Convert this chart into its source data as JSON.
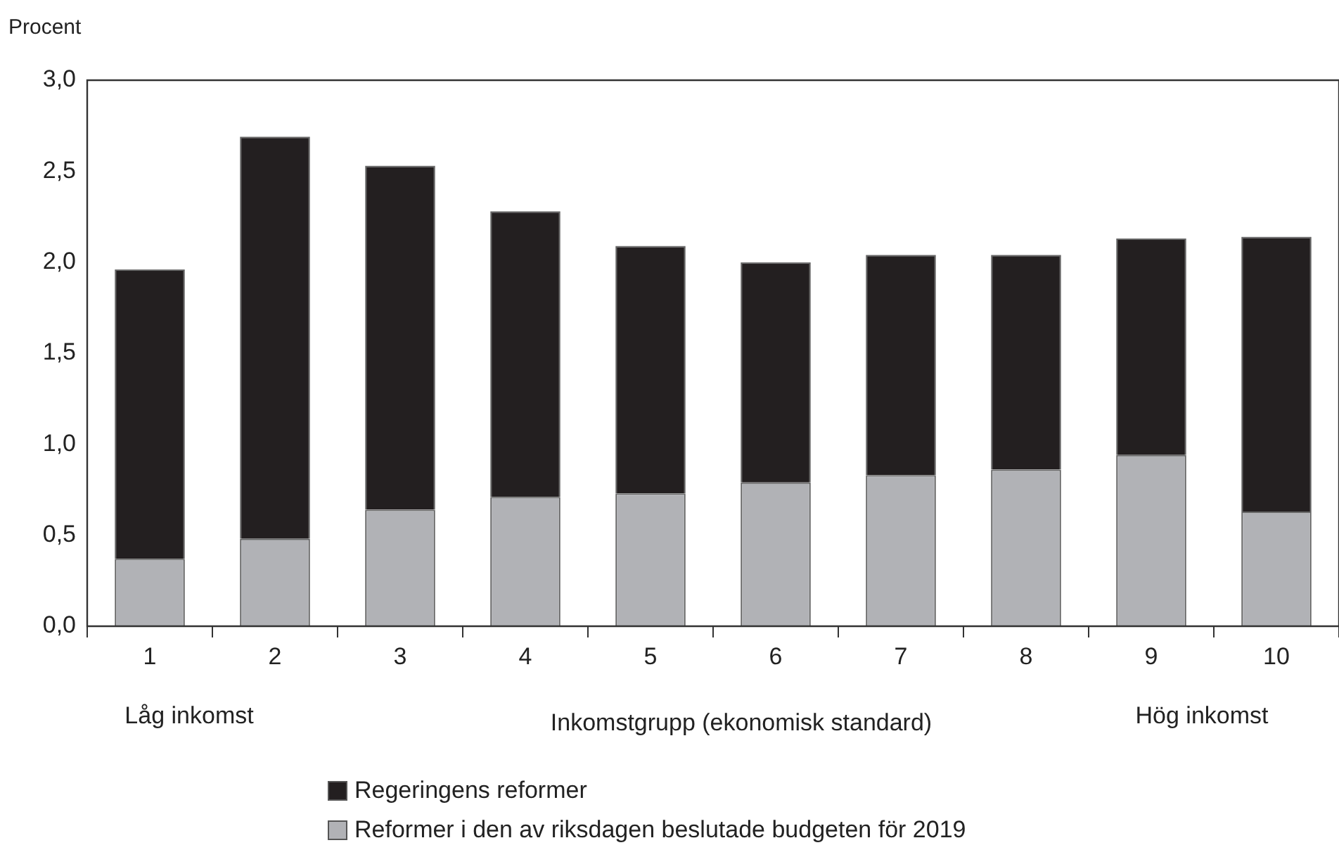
{
  "chart_data": {
    "type": "bar",
    "stacked": true,
    "ylabel": "Procent",
    "xlabel": "Inkomstgrupp (ekonomisk standard)",
    "categories": [
      "1",
      "2",
      "3",
      "4",
      "5",
      "6",
      "7",
      "8",
      "9",
      "10"
    ],
    "series": [
      {
        "name": "Reformer i den av riksdagen beslutade budgeten för 2019",
        "color": "#b1b2b6",
        "values": [
          0.37,
          0.48,
          0.64,
          0.71,
          0.73,
          0.79,
          0.83,
          0.86,
          0.94,
          0.63
        ]
      },
      {
        "name": "Regeringens reformer",
        "color": "#231f20",
        "values": [
          1.59,
          2.21,
          1.89,
          1.57,
          1.36,
          1.21,
          1.21,
          1.18,
          1.19,
          1.51
        ]
      }
    ],
    "ylim": [
      0,
      3
    ],
    "yticks": [
      {
        "value": 0,
        "label": "0,0"
      },
      {
        "value": 0.5,
        "label": "0,5"
      },
      {
        "value": 1,
        "label": "1,0"
      },
      {
        "value": 1.5,
        "label": "1,5"
      },
      {
        "value": 2,
        "label": "2,0"
      },
      {
        "value": 2.5,
        "label": "2,5"
      },
      {
        "value": 3,
        "label": "3,0"
      }
    ],
    "grid": false,
    "legend": "bottom",
    "annotations": [
      "Låg inkomst",
      "Hög inkomst"
    ]
  }
}
